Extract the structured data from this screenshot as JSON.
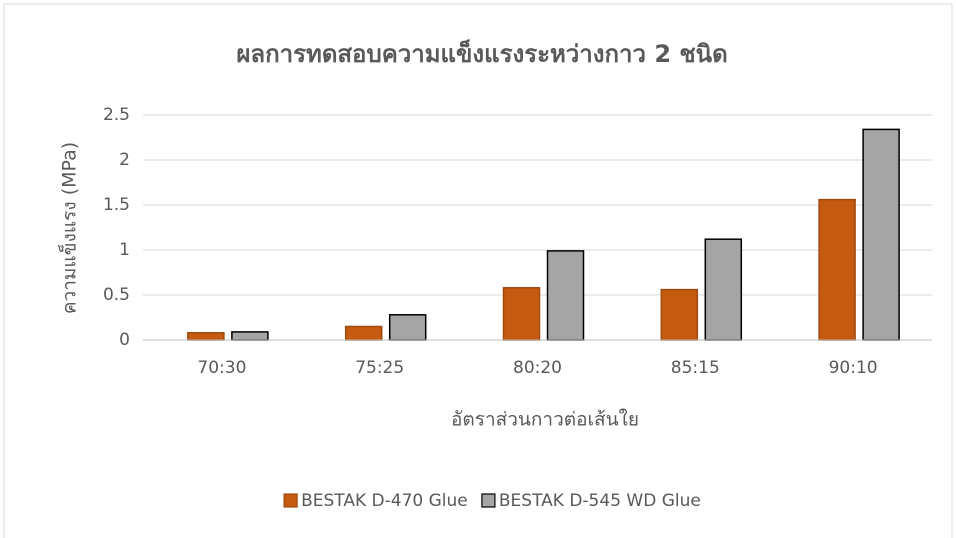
{
  "chart_data": {
    "type": "bar",
    "title": "ผลการทดสอบความแข็งแรงระหว่างกาว 2 ชนิด",
    "x_label": "อัตราส่วนกาวต่อเส้นใย",
    "y_label": "ความแข็งแรง (MPa)",
    "categories": [
      "70:30",
      "75:25",
      "80:20",
      "85:15",
      "90:10"
    ],
    "series": [
      {
        "name": "BESTAK D-470 Glue",
        "color": "#c55a11",
        "values": [
          0.08,
          0.15,
          0.58,
          0.56,
          1.56
        ]
      },
      {
        "name": "BESTAK D-545 WD Glue",
        "color": "#a5a5a5",
        "values": [
          0.09,
          0.28,
          0.99,
          1.12,
          2.34
        ]
      }
    ],
    "ylim": [
      0,
      2.5
    ],
    "yticks": [
      0,
      0.5,
      1,
      1.5,
      2,
      2.5
    ],
    "grid": true,
    "legend": "bottom"
  }
}
